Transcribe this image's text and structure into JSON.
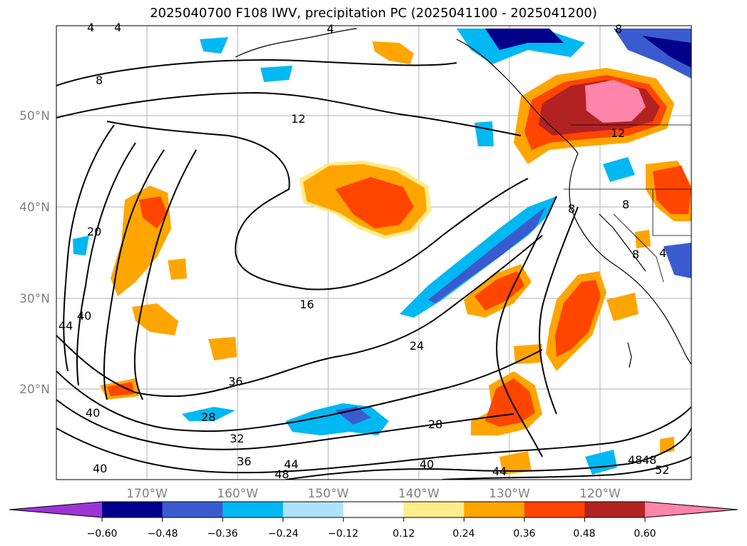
{
  "title": "2025040700 F108 IWV, precipitation PC (2025041100 - 2025041200)",
  "lat_labels": [
    "50°N",
    "40°N",
    "30°N",
    "20°N"
  ],
  "lon_labels": [
    "170°W",
    "160°W",
    "150°W",
    "140°W",
    "130°W",
    "120°W"
  ],
  "contour_labels": [
    "4",
    "4",
    "4",
    "8",
    "8",
    "12",
    "12",
    "16",
    "20",
    "24",
    "28",
    "28",
    "32",
    "36",
    "36",
    "40",
    "40",
    "40",
    "40",
    "44",
    "44",
    "44",
    "48",
    "48",
    "48",
    "52",
    "8",
    "8",
    "8",
    "4"
  ],
  "colorbar": {
    "ticks": [
      "−0.60",
      "−0.48",
      "−0.36",
      "−0.24",
      "−0.12",
      "0.12",
      "0.24",
      "0.36",
      "0.48",
      "0.60"
    ],
    "colors": [
      "#9b35d6",
      "#00008b",
      "#3a5bd0",
      "#00b8f2",
      "#aee3fa",
      "#ffffff",
      "#ffec8b",
      "#ffa500",
      "#ff4500",
      "#b22222",
      "#ff85aa"
    ]
  }
}
